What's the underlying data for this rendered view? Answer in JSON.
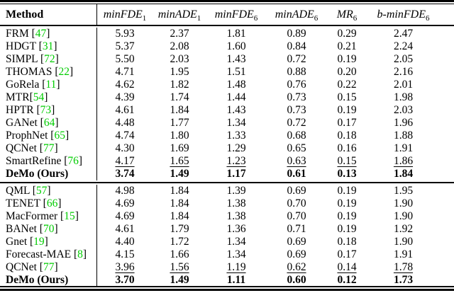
{
  "colors": {
    "citation_green": "#00CC00",
    "text": "#000000",
    "rule": "#000000",
    "background": "#ffffff"
  },
  "table": {
    "header": {
      "method_label": "Method",
      "metrics": [
        {
          "base": "minFDE",
          "sub": "1"
        },
        {
          "base": "minADE",
          "sub": "1"
        },
        {
          "base": "minFDE",
          "sub": "6"
        },
        {
          "base": "minADE",
          "sub": "6"
        },
        {
          "base": "MR",
          "sub": "6"
        },
        {
          "base": "b-minFDE",
          "sub": "6"
        }
      ]
    },
    "sections": [
      {
        "rows": [
          {
            "pre": "FRM [",
            "cite": "47",
            "post": "]",
            "values": [
              "5.93",
              "2.37",
              "1.81",
              "0.89",
              "0.29",
              "2.47"
            ],
            "style": "normal"
          },
          {
            "pre": "HDGT [",
            "cite": "31",
            "post": "]",
            "values": [
              "5.37",
              "2.08",
              "1.60",
              "0.84",
              "0.21",
              "2.24"
            ],
            "style": "normal"
          },
          {
            "pre": "SIMPL [",
            "cite": "72",
            "post": "]",
            "values": [
              "5.50",
              "2.03",
              "1.43",
              "0.72",
              "0.19",
              "2.05"
            ],
            "style": "normal"
          },
          {
            "pre": "THOMAS [",
            "cite": "22",
            "post": "]",
            "values": [
              "4.71",
              "1.95",
              "1.51",
              "0.88",
              "0.20",
              "2.16"
            ],
            "style": "normal"
          },
          {
            "pre": "GoRela [",
            "cite": "11",
            "post": "]",
            "values": [
              "4.62",
              "1.82",
              "1.48",
              "0.76",
              "0.22",
              "2.01"
            ],
            "style": "normal"
          },
          {
            "pre": "MTR[",
            "cite": "54",
            "post": "]",
            "values": [
              "4.39",
              "1.74",
              "1.44",
              "0.73",
              "0.15",
              "1.98"
            ],
            "style": "normal"
          },
          {
            "pre": "HPTR [",
            "cite": "73",
            "post": "]",
            "values": [
              "4.61",
              "1.84",
              "1.43",
              "0.73",
              "0.19",
              "2.03"
            ],
            "style": "normal"
          },
          {
            "pre": "GANet [",
            "cite": "64",
            "post": "]",
            "values": [
              "4.48",
              "1.77",
              "1.34",
              "0.72",
              "0.17",
              "1.96"
            ],
            "style": "normal"
          },
          {
            "pre": "ProphNet [",
            "cite": "65",
            "post": "]",
            "values": [
              "4.74",
              "1.80",
              "1.33",
              "0.68",
              "0.18",
              "1.88"
            ],
            "style": "normal"
          },
          {
            "pre": "QCNet [",
            "cite": "77",
            "post": "]",
            "values": [
              "4.30",
              "1.69",
              "1.29",
              "0.65",
              "0.16",
              "1.91"
            ],
            "style": "normal"
          },
          {
            "pre": "SmartRefine [",
            "cite": "76",
            "post": "]",
            "values": [
              "4.17",
              "1.65",
              "1.23",
              "0.63",
              "0.15",
              "1.86"
            ],
            "style": "underline"
          },
          {
            "pre": "DeMo (Ours)",
            "cite": "",
            "post": "",
            "values": [
              "3.74",
              "1.49",
              "1.17",
              "0.61",
              "0.13",
              "1.84"
            ],
            "style": "bold"
          }
        ]
      },
      {
        "rows": [
          {
            "pre": "QML [",
            "cite": "57",
            "post": "]",
            "values": [
              "4.98",
              "1.84",
              "1.39",
              "0.69",
              "0.19",
              "1.95"
            ],
            "style": "normal"
          },
          {
            "pre": "TENET [",
            "cite": "66",
            "post": "]",
            "values": [
              "4.69",
              "1.84",
              "1.38",
              "0.70",
              "0.19",
              "1.90"
            ],
            "style": "normal"
          },
          {
            "pre": "MacFormer [",
            "cite": "15",
            "post": "]",
            "values": [
              "4.69",
              "1.84",
              "1.38",
              "0.70",
              "0.19",
              "1.90"
            ],
            "style": "normal"
          },
          {
            "pre": "BANet [",
            "cite": "70",
            "post": "]",
            "values": [
              "4.61",
              "1.79",
              "1.36",
              "0.71",
              "0.19",
              "1.92"
            ],
            "style": "normal"
          },
          {
            "pre": "Gnet [",
            "cite": "19",
            "post": "]",
            "values": [
              "4.40",
              "1.72",
              "1.34",
              "0.69",
              "0.18",
              "1.90"
            ],
            "style": "normal"
          },
          {
            "pre": "Forecast-MAE [",
            "cite": "8",
            "post": "]",
            "values": [
              "4.15",
              "1.66",
              "1.34",
              "0.69",
              "0.17",
              "1.91"
            ],
            "style": "normal"
          },
          {
            "pre": "QCNet [",
            "cite": "77",
            "post": "]",
            "values": [
              "3.96",
              "1.56",
              "1.19",
              "0.62",
              "0.14",
              "1.78"
            ],
            "style": "underline"
          },
          {
            "pre": "DeMo (Ours)",
            "cite": "",
            "post": "",
            "values": [
              "3.70",
              "1.49",
              "1.11",
              "0.60",
              "0.12",
              "1.73"
            ],
            "style": "bold"
          }
        ]
      }
    ]
  }
}
